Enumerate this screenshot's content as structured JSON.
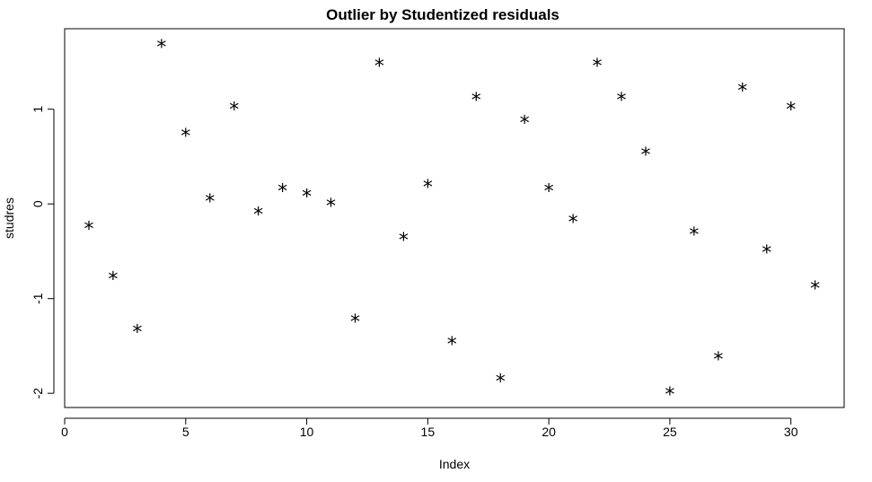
{
  "chart_data": {
    "type": "scatter",
    "title": "Outlier by Studentized residuals",
    "xlabel": "Index",
    "ylabel": "studres",
    "marker": "*",
    "marker_color": "#000000",
    "xlim": [
      0,
      32.2
    ],
    "ylim": [
      -2.15,
      1.85
    ],
    "xticks": [
      0,
      5,
      10,
      15,
      20,
      25,
      30
    ],
    "yticks": [
      -2,
      -1,
      0,
      1
    ],
    "grid": false,
    "x": [
      1,
      2,
      3,
      4,
      5,
      6,
      7,
      8,
      9,
      10,
      11,
      12,
      13,
      14,
      15,
      16,
      17,
      18,
      19,
      20,
      21,
      22,
      23,
      24,
      25,
      26,
      27,
      28,
      29,
      30,
      31
    ],
    "y": [
      -0.24,
      -0.77,
      -1.33,
      1.68,
      0.74,
      0.05,
      1.02,
      -0.09,
      0.16,
      0.1,
      0.0,
      -1.22,
      1.48,
      -0.36,
      0.2,
      -1.46,
      1.12,
      -1.85,
      0.88,
      0.16,
      -0.17,
      1.48,
      1.12,
      0.54,
      -1.99,
      -0.3,
      -1.62,
      1.22,
      -0.49,
      1.02,
      -0.87
    ]
  }
}
